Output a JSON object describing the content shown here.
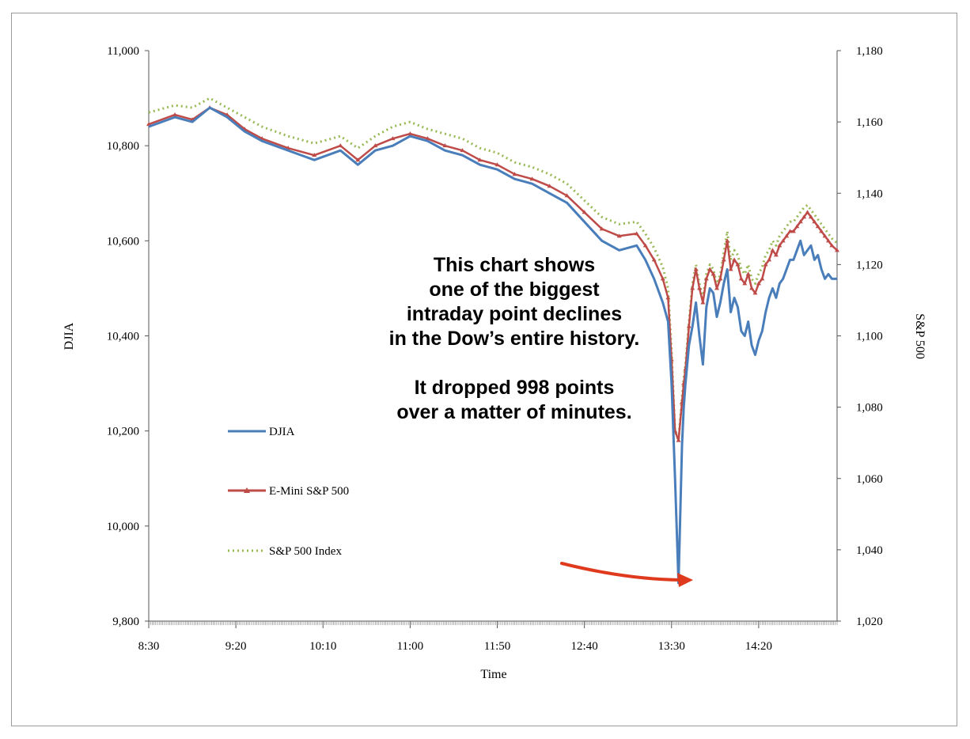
{
  "chart_data": {
    "type": "line",
    "xlabel": "Time",
    "ylabel_left": "DJIA",
    "ylabel_right": "S&P 500",
    "x_ticks": [
      "8:30",
      "9:20",
      "10:10",
      "11:00",
      "11:50",
      "12:40",
      "13:30",
      "14:20"
    ],
    "x_range_minutes": [
      510,
      905
    ],
    "ylim_left": [
      9800,
      11000
    ],
    "ylim_right": [
      1020,
      1180
    ],
    "y_ticks_left": [
      "11,000",
      "10,800",
      "10,600",
      "10,400",
      "10,200",
      "10,000",
      "9,800"
    ],
    "y_ticks_right": [
      "1,180",
      "1,160",
      "1,140",
      "1,120",
      "1,100",
      "1,080",
      "1,060",
      "1,040",
      "1,020"
    ],
    "grid": false,
    "legend_position": "left-center",
    "series": [
      {
        "name": "DJIA",
        "axis": "left",
        "color": "#4a7ebb",
        "style": "solid",
        "x": [
          510,
          525,
          535,
          545,
          555,
          565,
          575,
          590,
          605,
          620,
          630,
          640,
          650,
          660,
          670,
          680,
          690,
          700,
          710,
          720,
          730,
          740,
          750,
          760,
          770,
          780,
          790,
          795,
          800,
          805,
          808,
          810,
          812,
          814,
          816,
          817,
          818,
          820,
          822,
          824,
          826,
          828,
          830,
          832,
          834,
          836,
          838,
          840,
          842,
          844,
          846,
          848,
          850,
          852,
          854,
          856,
          858,
          860,
          862,
          864,
          866,
          868,
          870,
          872,
          874,
          876,
          878,
          880,
          882,
          884,
          886,
          888,
          890,
          892,
          894,
          896,
          898,
          900,
          902,
          905
        ],
        "y": [
          10840,
          10860,
          10850,
          10880,
          10860,
          10830,
          10810,
          10790,
          10770,
          10790,
          10760,
          10790,
          10800,
          10820,
          10810,
          10790,
          10780,
          10760,
          10750,
          10730,
          10720,
          10700,
          10680,
          10640,
          10600,
          10580,
          10590,
          10560,
          10520,
          10470,
          10430,
          10300,
          10100,
          9880,
          10170,
          10250,
          10300,
          10380,
          10420,
          10470,
          10400,
          10340,
          10460,
          10500,
          10490,
          10440,
          10470,
          10510,
          10540,
          10450,
          10480,
          10460,
          10410,
          10400,
          10430,
          10380,
          10360,
          10390,
          10410,
          10450,
          10480,
          10500,
          10480,
          10510,
          10520,
          10540,
          10560,
          10560,
          10580,
          10600,
          10570,
          10580,
          10590,
          10560,
          10570,
          10540,
          10520,
          10530,
          10520,
          10520
        ]
      },
      {
        "name": "E-Mini S&P 500",
        "axis": "left",
        "color": "#be4b48",
        "style": "solid-triangle-markers",
        "x": [
          510,
          525,
          535,
          545,
          555,
          565,
          575,
          590,
          605,
          620,
          630,
          640,
          650,
          660,
          670,
          680,
          690,
          700,
          710,
          720,
          730,
          740,
          750,
          760,
          770,
          780,
          790,
          795,
          800,
          805,
          808,
          810,
          812,
          814,
          816,
          817,
          818,
          820,
          822,
          824,
          826,
          828,
          830,
          832,
          834,
          836,
          838,
          840,
          842,
          844,
          846,
          848,
          850,
          852,
          854,
          856,
          858,
          860,
          862,
          864,
          866,
          868,
          870,
          872,
          874,
          876,
          878,
          880,
          882,
          884,
          886,
          888,
          890,
          892,
          894,
          896,
          898,
          900,
          902,
          905
        ],
        "y": [
          10845,
          10865,
          10855,
          10880,
          10865,
          10835,
          10815,
          10795,
          10780,
          10800,
          10770,
          10800,
          10815,
          10825,
          10815,
          10800,
          10790,
          10770,
          10760,
          10740,
          10730,
          10715,
          10695,
          10660,
          10625,
          10610,
          10615,
          10590,
          10560,
          10520,
          10480,
          10350,
          10200,
          10180,
          10260,
          10300,
          10330,
          10420,
          10500,
          10540,
          10500,
          10470,
          10520,
          10540,
          10530,
          10500,
          10520,
          10560,
          10600,
          10540,
          10560,
          10550,
          10520,
          10510,
          10530,
          10500,
          10490,
          10510,
          10520,
          10550,
          10560,
          10580,
          10570,
          10590,
          10600,
          10610,
          10620,
          10620,
          10630,
          10640,
          10650,
          10660,
          10650,
          10640,
          10630,
          10620,
          10610,
          10600,
          10590,
          10580
        ]
      },
      {
        "name": "S&P 500 Index",
        "axis": "left",
        "color": "#98b954",
        "style": "dotted",
        "x": [
          510,
          525,
          535,
          545,
          555,
          565,
          575,
          590,
          605,
          620,
          630,
          640,
          650,
          660,
          670,
          680,
          690,
          700,
          710,
          720,
          730,
          740,
          750,
          760,
          770,
          780,
          790,
          795,
          800,
          805,
          808,
          810,
          812,
          814,
          816,
          817,
          818,
          820,
          822,
          824,
          826,
          828,
          830,
          832,
          834,
          836,
          838,
          840,
          842,
          844,
          846,
          848,
          850,
          852,
          854,
          856,
          858,
          860,
          862,
          864,
          866,
          868,
          870,
          872,
          874,
          876,
          878,
          880,
          882,
          884,
          886,
          888,
          890,
          892,
          894,
          896,
          898,
          900,
          902,
          905
        ],
        "y": [
          10870,
          10885,
          10880,
          10900,
          10880,
          10860,
          10840,
          10820,
          10805,
          10820,
          10795,
          10820,
          10840,
          10850,
          10835,
          10825,
          10815,
          10795,
          10785,
          10765,
          10755,
          10740,
          10720,
          10685,
          10650,
          10635,
          10640,
          10615,
          10585,
          10545,
          10500,
          10370,
          10200,
          10180,
          10270,
          10310,
          10340,
          10430,
          10510,
          10550,
          10510,
          10480,
          10530,
          10550,
          10540,
          10510,
          10530,
          10575,
          10620,
          10560,
          10580,
          10570,
          10540,
          10530,
          10550,
          10520,
          10510,
          10530,
          10545,
          10570,
          10580,
          10600,
          10590,
          10610,
          10620,
          10630,
          10640,
          10640,
          10650,
          10660,
          10670,
          10675,
          10665,
          10655,
          10645,
          10635,
          10625,
          10615,
          10605,
          10595
        ]
      }
    ]
  },
  "annotation": {
    "lines": [
      "This chart shows",
      "one of the biggest",
      "intraday point declines",
      "in the Dow’s entire history.",
      "",
      "It dropped 998 points",
      "over a matter of minutes."
    ]
  },
  "arrow_color": "#e03a1e"
}
